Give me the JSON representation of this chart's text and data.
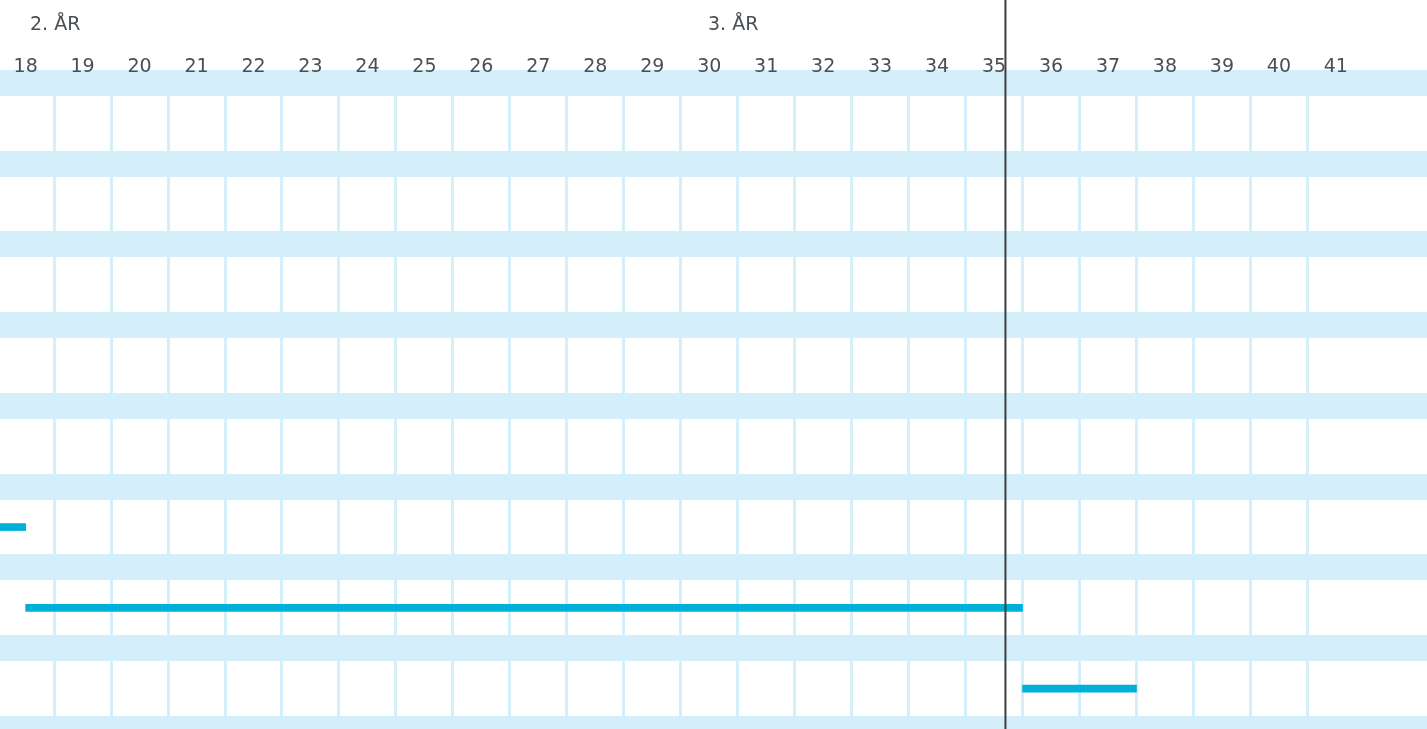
{
  "chart_data": {
    "type": "bar",
    "orientation": "horizontal",
    "categories": [
      null,
      null,
      null,
      null,
      null,
      null,
      null,
      null
    ],
    "series": [
      {
        "color": "#00b0d8",
        "base": [
          null,
          null,
          null,
          null,
          null,
          17.5,
          18.0,
          35.5
        ],
        "values": [
          null,
          null,
          null,
          null,
          null,
          0.5,
          17.5,
          2.0
        ]
      }
    ],
    "xlim": [
      17.55,
      42.6
    ],
    "xticks": [
      18,
      {
        "value": 18.5,
        "label": null
      },
      19,
      {
        "value": 19.5,
        "label": null
      },
      20,
      {
        "value": 20.5,
        "label": null
      },
      21,
      {
        "value": 21.5,
        "label": null
      },
      22,
      {
        "value": 22.5,
        "label": null
      },
      23,
      {
        "value": 23.5,
        "label": null
      },
      24,
      {
        "value": 24.5,
        "label": null
      },
      25,
      {
        "value": 25.5,
        "label": null
      },
      26,
      {
        "value": 26.5,
        "label": null
      },
      27,
      {
        "value": 27.5,
        "label": null
      },
      28,
      {
        "value": 28.5,
        "label": null
      },
      29,
      {
        "value": 29.5,
        "label": null
      },
      30,
      {
        "value": 30.5,
        "label": null
      },
      31,
      {
        "value": 31.5,
        "label": null
      },
      32,
      {
        "value": 32.5,
        "label": null
      },
      33,
      {
        "value": 33.5,
        "label": null
      },
      34,
      {
        "value": 34.5,
        "label": null
      },
      35,
      {
        "value": 35.5,
        "label": null
      },
      36,
      {
        "value": 36.5,
        "label": null
      },
      37,
      {
        "value": 37.5,
        "label": null
      },
      38,
      {
        "value": 38.5,
        "label": null
      },
      39,
      {
        "value": 39.5,
        "label": null
      },
      40,
      {
        "value": 40.5,
        "label": null
      },
      41
    ],
    "annotations": [
      "2. ÅR",
      "3. ÅR"
    ],
    "ref_lines": [
      {
        "axis": "x",
        "value": 35.2,
        "color": "#3a3f44"
      }
    ],
    "grid": true,
    "legend": false
  }
}
